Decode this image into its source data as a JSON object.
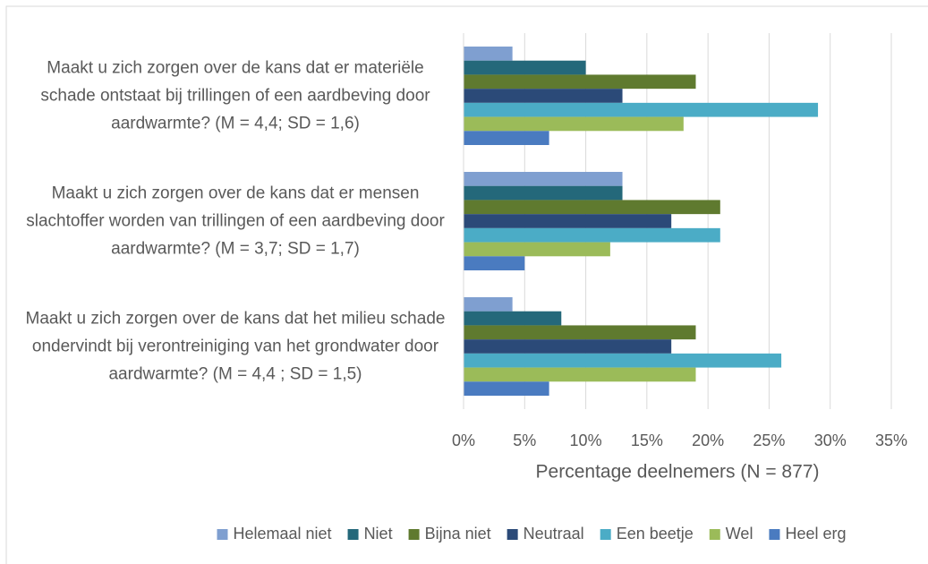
{
  "chart_data": {
    "type": "barh",
    "categories": [
      "Maakt u zich zorgen over de kans dat er materiële schade ontstaat bij trillingen of een aardbeving door aardwarmte? (M = 4,4; SD = 1,6)",
      "Maakt u zich zorgen over de kans dat er mensen slachtoffer worden van trillingen of een aardbeving door aardwarmte? (M = 3,7;  SD = 1,7)",
      "Maakt u zich zorgen over de kans dat het milieu schade ondervindt bij verontreiniging van het grondwater door aardwarmte? (M = 4,4 ; SD = 1,5)"
    ],
    "series": [
      {
        "name": "Helemaal niet",
        "color": "#7f9fd0",
        "values": [
          4,
          13,
          4
        ]
      },
      {
        "name": "Niet",
        "color": "#24687a",
        "values": [
          10,
          13,
          8
        ]
      },
      {
        "name": "Bijna niet",
        "color": "#5f7a2f",
        "values": [
          19,
          21,
          19
        ]
      },
      {
        "name": "Neutraal",
        "color": "#2b4a78",
        "values": [
          13,
          17,
          17
        ]
      },
      {
        "name": "Een beetje",
        "color": "#4bacc6",
        "values": [
          29,
          21,
          26
        ]
      },
      {
        "name": "Wel",
        "color": "#9bbb59",
        "values": [
          18,
          12,
          19
        ]
      },
      {
        "name": "Heel erg",
        "color": "#4a7bc0",
        "values": [
          7,
          5,
          7
        ]
      }
    ],
    "xlabel": "Percentage deelnemers (N = 877)",
    "xlim": [
      0,
      35
    ],
    "xticks": [
      {
        "value": 0,
        "label": "0%"
      },
      {
        "value": 5,
        "label": "5%"
      },
      {
        "value": 10,
        "label": "10%"
      },
      {
        "value": 15,
        "label": "15%"
      },
      {
        "value": 20,
        "label": "20%"
      },
      {
        "value": 25,
        "label": "25%"
      },
      {
        "value": 30,
        "label": "30%"
      },
      {
        "value": 35,
        "label": "35%"
      }
    ],
    "grid": true,
    "legend": "bottom"
  }
}
